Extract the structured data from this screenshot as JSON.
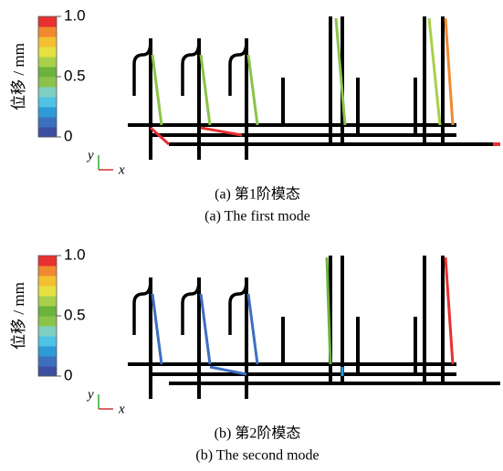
{
  "panels": [
    {
      "colorbar": {
        "label": "位移 / mm",
        "ticks": [
          0,
          0.5,
          {
            "value": 1,
            "label": "1.0"
          }
        ]
      },
      "axes": {
        "y": "y",
        "x": "x"
      },
      "caption_cn": "(a)  第1阶模态",
      "caption_en": "(a)  The first mode"
    },
    {
      "colorbar": {
        "label": "位移 / mm",
        "ticks": [
          0,
          0.5,
          {
            "value": 1,
            "label": "1.0"
          }
        ]
      },
      "axes": {
        "y": "y",
        "x": "x"
      },
      "caption_cn": "(b)  第2阶模态",
      "caption_en": "(b)  The second mode"
    }
  ]
}
